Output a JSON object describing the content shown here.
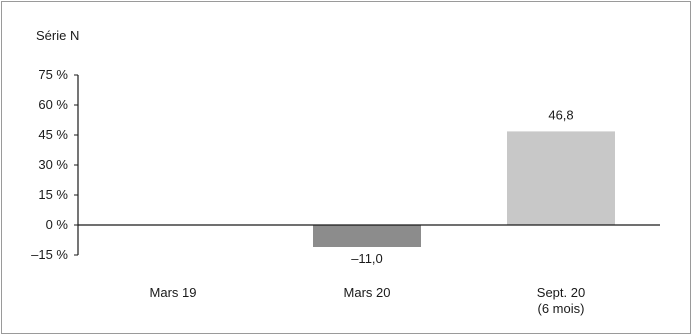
{
  "chart_data": {
    "type": "bar",
    "title": "Série N",
    "categories": [
      "Mars 19",
      "Mars 20",
      "Sept. 20\n(6 mois)"
    ],
    "values": [
      null,
      -11.0,
      46.8
    ],
    "value_labels": [
      "",
      "–11,0",
      "46,8"
    ],
    "bar_colors": [
      "#8c8c8c",
      "#8c8c8c",
      "#c8c8c8"
    ],
    "ylim": [
      -15,
      75
    ],
    "yticks": [
      -15,
      0,
      15,
      30,
      45,
      60,
      75
    ],
    "ytick_labels": [
      "–15 %",
      "0 %",
      "15 %",
      "30 %",
      "45 %",
      "60 %",
      "75 %"
    ],
    "grid": false,
    "xlabel": "",
    "ylabel": ""
  }
}
